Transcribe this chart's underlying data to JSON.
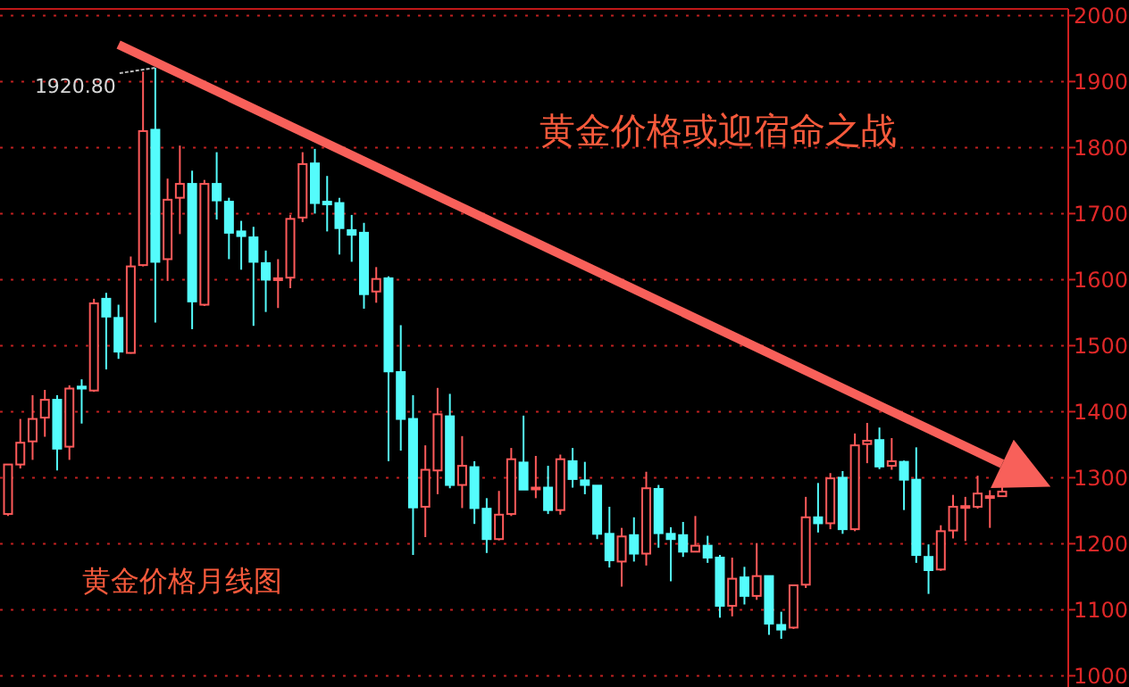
{
  "chart_data": {
    "type": "candlestick",
    "title": "黄金价格或迎宿命之战",
    "subtitle": "黄金价格月线图",
    "annotations": [
      "1920.80"
    ],
    "categories": [
      null,
      null,
      null,
      null,
      null,
      null,
      null,
      null,
      null,
      null,
      null,
      null,
      null,
      null,
      null,
      null,
      null,
      null,
      null,
      null,
      null,
      null,
      null,
      null,
      null,
      null,
      null,
      null,
      null,
      null,
      null,
      null,
      null,
      null,
      null,
      null,
      null,
      null,
      null,
      null,
      null,
      null,
      null,
      null,
      null,
      null,
      null,
      null,
      null,
      null,
      null,
      null,
      null,
      null,
      null,
      null,
      null,
      null,
      null,
      null,
      null,
      null,
      null,
      null,
      null,
      null,
      null,
      null,
      null,
      null,
      null,
      null,
      null,
      null,
      null,
      null,
      null,
      null,
      null,
      null,
      null,
      null
    ],
    "ohlc": [
      [
        1245,
        1320,
        1242,
        1320
      ],
      [
        1320,
        1389,
        1314,
        1353
      ],
      [
        1355,
        1425,
        1327,
        1389
      ],
      [
        1391,
        1433,
        1362,
        1418
      ],
      [
        1418,
        1425,
        1311,
        1344
      ],
      [
        1347,
        1440,
        1327,
        1435
      ],
      [
        1438,
        1449,
        1382,
        1435
      ],
      [
        1432,
        1571,
        1430,
        1564
      ],
      [
        1571,
        1580,
        1464,
        1544
      ],
      [
        1542,
        1562,
        1480,
        1491
      ],
      [
        1489,
        1635,
        1488,
        1620
      ],
      [
        1622,
        1915,
        1620,
        1825
      ],
      [
        1827,
        1920.8,
        1535,
        1627
      ],
      [
        1631,
        1753,
        1598,
        1721
      ],
      [
        1724,
        1803,
        1669,
        1745
      ],
      [
        1745,
        1765,
        1525,
        1567
      ],
      [
        1562,
        1751,
        1560,
        1745
      ],
      [
        1745,
        1793,
        1691,
        1720
      ],
      [
        1718,
        1724,
        1631,
        1671
      ],
      [
        1673,
        1689,
        1615,
        1666
      ],
      [
        1664,
        1680,
        1530,
        1627
      ],
      [
        1625,
        1644,
        1551,
        1600
      ],
      [
        1600,
        1631,
        1557,
        1602
      ],
      [
        1603,
        1698,
        1587,
        1692
      ],
      [
        1694,
        1793,
        1687,
        1775
      ],
      [
        1776,
        1798,
        1700,
        1716
      ],
      [
        1718,
        1757,
        1673,
        1714
      ],
      [
        1716,
        1724,
        1638,
        1678
      ],
      [
        1675,
        1698,
        1627,
        1668
      ],
      [
        1671,
        1686,
        1556,
        1578
      ],
      [
        1582,
        1619,
        1565,
        1601
      ],
      [
        1602,
        1605,
        1325,
        1461
      ],
      [
        1460,
        1531,
        1341,
        1389
      ],
      [
        1389,
        1425,
        1183,
        1255
      ],
      [
        1256,
        1349,
        1210,
        1312
      ],
      [
        1311,
        1436,
        1275,
        1396
      ],
      [
        1393,
        1427,
        1284,
        1289
      ],
      [
        1289,
        1363,
        1254,
        1318
      ],
      [
        1316,
        1325,
        1230,
        1254
      ],
      [
        1253,
        1269,
        1186,
        1207
      ],
      [
        1207,
        1280,
        1205,
        1244
      ],
      [
        1245,
        1345,
        1242,
        1328
      ],
      [
        1323,
        1394,
        1282,
        1282
      ],
      [
        1283,
        1333,
        1269,
        1285
      ],
      [
        1285,
        1318,
        1245,
        1251
      ],
      [
        1251,
        1335,
        1244,
        1328
      ],
      [
        1325,
        1345,
        1285,
        1298
      ],
      [
        1296,
        1324,
        1275,
        1289
      ],
      [
        1288,
        1288,
        1207,
        1215
      ],
      [
        1215,
        1256,
        1164,
        1175
      ],
      [
        1173,
        1224,
        1135,
        1211
      ],
      [
        1213,
        1240,
        1173,
        1185
      ],
      [
        1185,
        1309,
        1167,
        1284
      ],
      [
        1283,
        1289,
        1194,
        1216
      ],
      [
        1215,
        1225,
        1143,
        1207
      ],
      [
        1213,
        1233,
        1180,
        1188
      ],
      [
        1188,
        1242,
        1188,
        1197
      ],
      [
        1197,
        1212,
        1171,
        1179
      ],
      [
        1179,
        1183,
        1088,
        1106
      ],
      [
        1106,
        1179,
        1090,
        1147
      ],
      [
        1149,
        1165,
        1108,
        1121
      ],
      [
        1121,
        1201,
        1115,
        1151
      ],
      [
        1151,
        1151,
        1062,
        1079
      ],
      [
        1077,
        1097,
        1056,
        1070
      ],
      [
        1073,
        1137,
        1071,
        1137
      ],
      [
        1138,
        1271,
        1133,
        1240
      ],
      [
        1240,
        1292,
        1217,
        1231
      ],
      [
        1231,
        1307,
        1222,
        1299
      ],
      [
        1300,
        1310,
        1215,
        1222
      ],
      [
        1222,
        1367,
        1219,
        1349
      ],
      [
        1351,
        1383,
        1322,
        1356
      ],
      [
        1357,
        1376,
        1313,
        1317
      ],
      [
        1318,
        1360,
        1312,
        1325
      ],
      [
        1324,
        1326,
        1251,
        1297
      ],
      [
        1297,
        1346,
        1171,
        1183
      ],
      [
        1180,
        1199,
        1124,
        1160
      ],
      [
        1161,
        1228,
        1159,
        1219
      ],
      [
        1220,
        1274,
        1208,
        1256
      ],
      [
        1255,
        1271,
        1204,
        1257
      ],
      [
        1256,
        1303,
        1253,
        1276
      ],
      [
        1271,
        1281,
        1224,
        1272
      ],
      [
        1272,
        1287,
        1271,
        1279
      ]
    ],
    "colors": [
      "#ff5a5a",
      "#ff5a5a",
      "#ff5a5a",
      "#ff5a5a",
      "#54fcfc",
      "#ff5a5a",
      "#54fcfc",
      "#ff5a5a",
      "#54fcfc",
      "#54fcfc",
      "#ff5a5a",
      "#ff5a5a",
      "#54fcfc",
      "#ff5a5a",
      "#ff5a5a",
      "#54fcfc",
      "#ff5a5a",
      "#54fcfc",
      "#54fcfc",
      "#54fcfc",
      "#54fcfc",
      "#54fcfc",
      "#ff5a5a",
      "#ff5a5a",
      "#ff5a5a",
      "#54fcfc",
      "#54fcfc",
      "#54fcfc",
      "#54fcfc",
      "#54fcfc",
      "#ff5a5a",
      "#54fcfc",
      "#54fcfc",
      "#54fcfc",
      "#ff5a5a",
      "#ff5a5a",
      "#54fcfc",
      "#ff5a5a",
      "#54fcfc",
      "#54fcfc",
      "#ff5a5a",
      "#ff5a5a",
      "#54fcfc",
      "#ff5a5a",
      "#54fcfc",
      "#ff5a5a",
      "#54fcfc",
      "#54fcfc",
      "#54fcfc",
      "#54fcfc",
      "#ff5a5a",
      "#54fcfc",
      "#ff5a5a",
      "#54fcfc",
      "#54fcfc",
      "#54fcfc",
      "#ff5a5a",
      "#54fcfc",
      "#54fcfc",
      "#ff5a5a",
      "#54fcfc",
      "#ff5a5a",
      "#54fcfc",
      "#54fcfc",
      "#ff5a5a",
      "#ff5a5a",
      "#54fcfc",
      "#ff5a5a",
      "#54fcfc",
      "#ff5a5a",
      "#ff5a5a",
      "#54fcfc",
      "#ff5a5a",
      "#54fcfc",
      "#54fcfc",
      "#54fcfc",
      "#ff5a5a",
      "#ff5a5a",
      "#ff5a5a",
      "#ff5a5a",
      "#ff5a5a",
      "#ff5a5a"
    ],
    "ylim": [
      983,
      2010
    ],
    "yticks": [
      1000,
      1100,
      1200,
      1300,
      1400,
      1500,
      1600,
      1700,
      1800,
      1900,
      2000
    ],
    "series": [
      {
        "type": "line",
        "values": [
          null,
          null,
          null,
          null,
          null,
          null,
          null,
          null,
          null,
          1956,
          null,
          null,
          null,
          null,
          null,
          null,
          null,
          null,
          null,
          null,
          null,
          null,
          null,
          null,
          null,
          null,
          null,
          null,
          null,
          null,
          null,
          null,
          null,
          null,
          null,
          null,
          null,
          null,
          null,
          null,
          null,
          null,
          null,
          null,
          null,
          null,
          null,
          null,
          null,
          null,
          null,
          null,
          null,
          null,
          null,
          null,
          null,
          null,
          null,
          null,
          null,
          null,
          null,
          null,
          null,
          null,
          null,
          null,
          null,
          null,
          null,
          null,
          null,
          null,
          null,
          null,
          null,
          null,
          null,
          null,
          null,
          1321
        ],
        "color": "#f8605a"
      }
    ],
    "grid": "y",
    "tick_labels": "y"
  }
}
